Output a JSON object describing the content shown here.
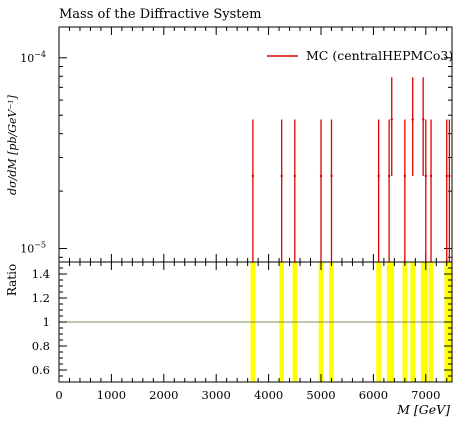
{
  "chart_data": {
    "type": "line",
    "title": "Mass of the Diffractive System",
    "legend_label": "MC (centralHEPMCo3)",
    "legend_position": "top-right",
    "series_color": "#dd0000",
    "ratio_band_color": "#ffff00",
    "ratio_line_color": "#888855",
    "main": {
      "ylabel": "dσ/dM [pb/GeV⁻¹]",
      "y_scale": "log",
      "ylim": [
        8.5e-06,
        0.000145
      ],
      "y_ticks": [
        {
          "value": 1e-05,
          "base": "10",
          "exp": "−5"
        },
        {
          "value": 0.0001,
          "base": "10",
          "exp": "−4"
        }
      ],
      "points": [
        {
          "x": 3700,
          "y": 2.4e-05,
          "ylo": 8.5e-06,
          "yhi": 4.75e-05
        },
        {
          "x": 4250,
          "y": 2.4e-05,
          "ylo": 8.5e-06,
          "yhi": 4.75e-05
        },
        {
          "x": 4500,
          "y": 2.4e-05,
          "ylo": 8.5e-06,
          "yhi": 4.75e-05
        },
        {
          "x": 5000,
          "y": 2.4e-05,
          "ylo": 8.5e-06,
          "yhi": 4.75e-05
        },
        {
          "x": 5200,
          "y": 2.4e-05,
          "ylo": 8.5e-06,
          "yhi": 4.75e-05
        },
        {
          "x": 6100,
          "y": 2.4e-05,
          "ylo": 8.5e-06,
          "yhi": 4.75e-05
        },
        {
          "x": 6300,
          "y": 2.4e-05,
          "ylo": 8.5e-06,
          "yhi": 4.75e-05
        },
        {
          "x": 6350,
          "y": 4.75e-05,
          "ylo": 2.4e-05,
          "yhi": 7.9e-05
        },
        {
          "x": 6600,
          "y": 2.4e-05,
          "ylo": 8.5e-06,
          "yhi": 4.75e-05
        },
        {
          "x": 6750,
          "y": 4.75e-05,
          "ylo": 2.4e-05,
          "yhi": 7.9e-05
        },
        {
          "x": 6950,
          "y": 4.75e-05,
          "ylo": 2.4e-05,
          "yhi": 7.9e-05
        },
        {
          "x": 7000,
          "y": 2.4e-05,
          "ylo": 8.5e-06,
          "yhi": 4.75e-05
        },
        {
          "x": 7100,
          "y": 2.4e-05,
          "ylo": 8.5e-06,
          "yhi": 4.75e-05
        },
        {
          "x": 7400,
          "y": 2.4e-05,
          "ylo": 8.5e-06,
          "yhi": 4.75e-05
        },
        {
          "x": 7450,
          "y": 2.4e-05,
          "ylo": 8.5e-06,
          "yhi": 4.75e-05
        }
      ]
    },
    "ratio": {
      "ylabel": "Ratio",
      "ylim": [
        0.5,
        1.5
      ],
      "y_ticks": [
        0.6,
        0.8,
        1,
        1.2,
        1.4
      ],
      "y_tick_labels": [
        "0.6",
        "0.8",
        "1",
        "1.2",
        "1.4"
      ],
      "reference": 1.0,
      "band_x": [
        3700,
        4250,
        4500,
        5000,
        5200,
        6100,
        6300,
        6350,
        6600,
        6750,
        6950,
        7000,
        7100,
        7400,
        7450
      ]
    },
    "x_axis": {
      "xlabel": "M [GeV]",
      "xlim": [
        0,
        7500
      ],
      "ticks": [
        0,
        1000,
        2000,
        3000,
        4000,
        5000,
        6000,
        7000
      ],
      "tick_labels": [
        "0",
        "1000",
        "2000",
        "3000",
        "4000",
        "5000",
        "6000",
        "7000"
      ]
    }
  }
}
